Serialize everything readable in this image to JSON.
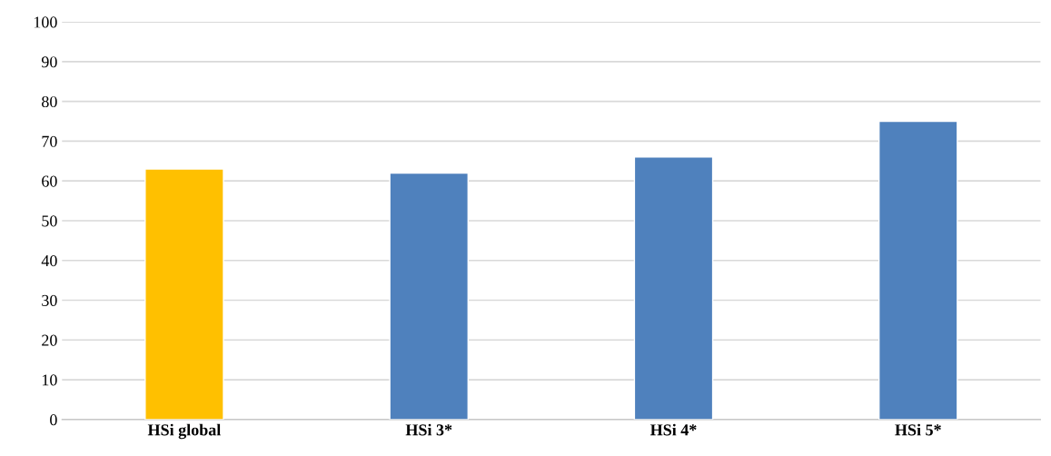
{
  "chart_data": {
    "type": "bar",
    "categories": [
      "HSi global",
      "HSi 3*",
      "HSi 4*",
      "HSi 5*"
    ],
    "values": [
      63,
      62,
      66,
      75
    ],
    "colors": [
      "#ffc000",
      "#4f81bd",
      "#4f81bd",
      "#4f81bd"
    ],
    "ylim": [
      0,
      100
    ],
    "yticks": [
      0,
      10,
      20,
      30,
      40,
      50,
      60,
      70,
      80,
      90,
      100
    ],
    "grid": "y",
    "legend": false
  }
}
